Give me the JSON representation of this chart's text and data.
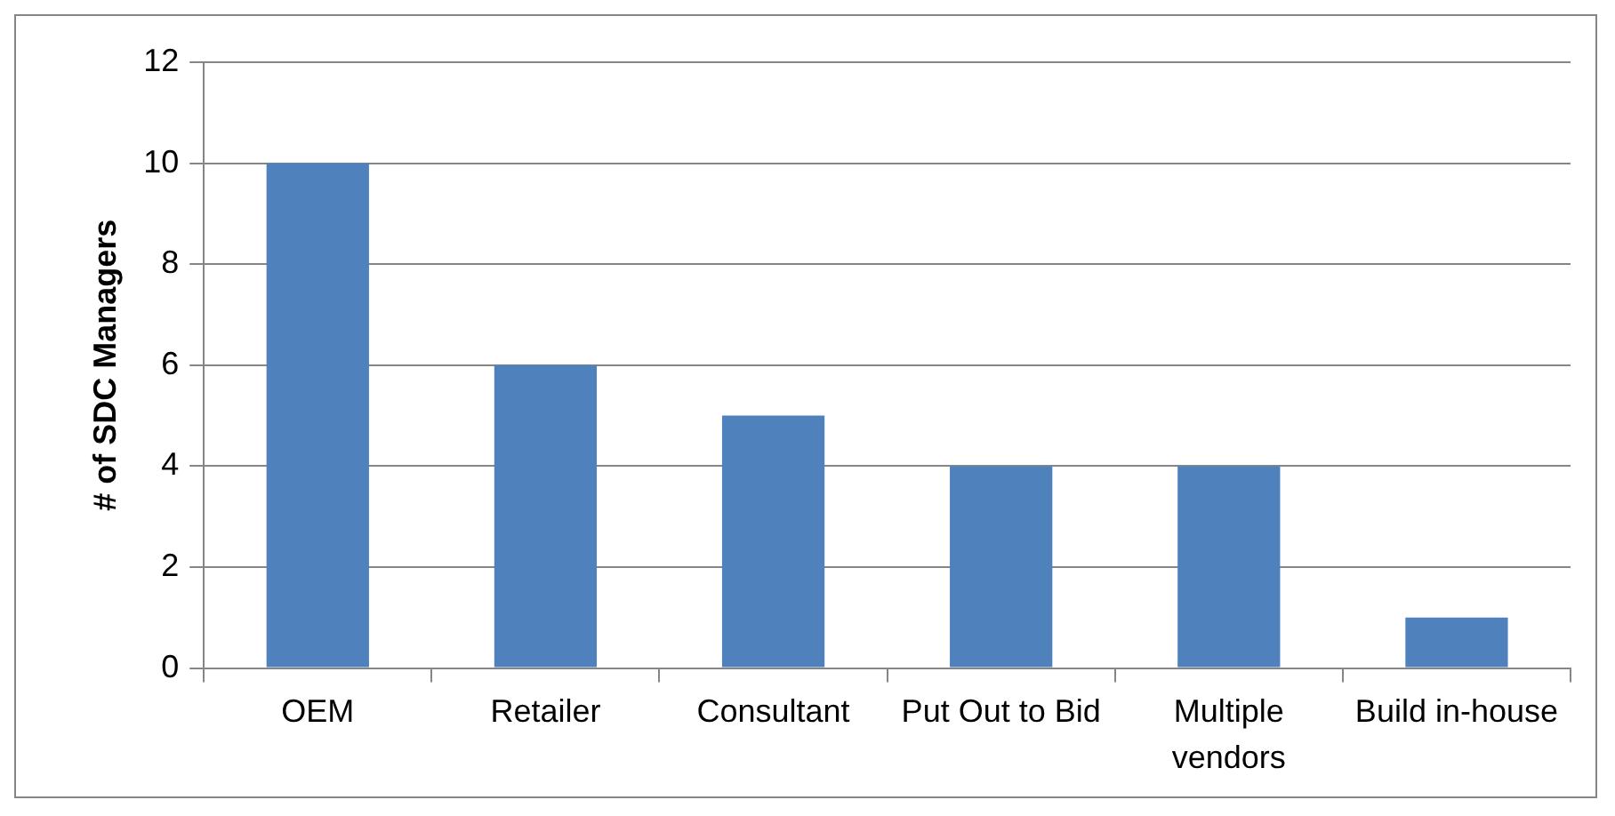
{
  "chart_data": {
    "type": "bar",
    "ylabel": "# of SDC Managers",
    "categories": [
      "OEM",
      "Retailer",
      "Consultant",
      "Put Out to Bid",
      "Multiple vendors",
      "Build in-house"
    ],
    "values": [
      10,
      6,
      5,
      4,
      4,
      1
    ],
    "color": "#4f81bd",
    "ylim": [
      0,
      12
    ],
    "yticks": [
      0,
      2,
      4,
      6,
      8,
      10,
      12
    ],
    "grid": "y",
    "legend": false
  }
}
